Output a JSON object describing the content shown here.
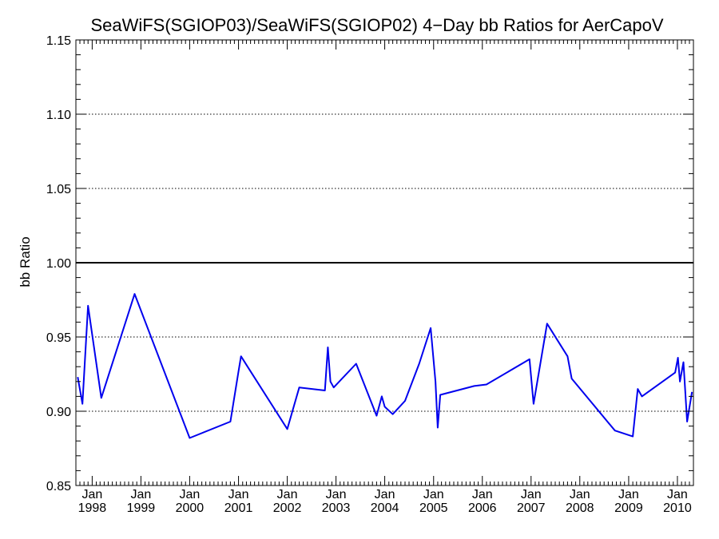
{
  "chart_data": {
    "type": "line",
    "title": "SeaWiFS(SGIOP03)/SeaWiFS(SGIOP02) 4−Day bb Ratios for AerCapoV",
    "xlabel": "",
    "ylabel": "bb Ratio",
    "xlim": [
      "1997-09-01",
      "2010-05-01"
    ],
    "ylim": [
      0.85,
      1.15
    ],
    "yticks": [
      "0.85",
      "0.90",
      "0.95",
      "1.00",
      "1.05",
      "1.10",
      "1.15"
    ],
    "xticks": [
      {
        "date": "1998-01-01",
        "month": "Jan",
        "year": "1998"
      },
      {
        "date": "1999-01-01",
        "month": "Jan",
        "year": "1999"
      },
      {
        "date": "2000-01-01",
        "month": "Jan",
        "year": "2000"
      },
      {
        "date": "2001-01-01",
        "month": "Jan",
        "year": "2001"
      },
      {
        "date": "2002-01-01",
        "month": "Jan",
        "year": "2002"
      },
      {
        "date": "2003-01-01",
        "month": "Jan",
        "year": "2003"
      },
      {
        "date": "2004-01-01",
        "month": "Jan",
        "year": "2004"
      },
      {
        "date": "2005-01-01",
        "month": "Jan",
        "year": "2005"
      },
      {
        "date": "2006-01-01",
        "month": "Jan",
        "year": "2006"
      },
      {
        "date": "2007-01-01",
        "month": "Jan",
        "year": "2007"
      },
      {
        "date": "2008-01-01",
        "month": "Jan",
        "year": "2008"
      },
      {
        "date": "2009-01-01",
        "month": "Jan",
        "year": "2009"
      },
      {
        "date": "2010-01-01",
        "month": "Jan",
        "year": "2010"
      }
    ],
    "dotted_gridlines": [
      0.9,
      0.95,
      1.05,
      1.1
    ],
    "reference_line": 1.0,
    "series": [
      {
        "color": "#0000ee",
        "x": [
          "1997-09-15",
          "1997-10-20",
          "1997-12-01",
          "1998-03-10",
          "1998-11-15",
          "2000-01-01",
          "2000-11-01",
          "2001-01-01",
          "2001-01-20",
          "2001-03-10",
          "2002-01-01",
          "2002-04-01",
          "2002-10-10",
          "2002-11-01",
          "2002-11-20",
          "2002-12-15",
          "2003-06-01",
          "2003-11-01",
          "2003-12-10",
          "2004-01-01",
          "2004-03-01",
          "2004-06-01",
          "2004-09-15",
          "2004-12-10",
          "2005-01-15",
          "2005-02-01",
          "2005-02-20",
          "2005-11-01",
          "2006-02-01",
          "2006-12-20",
          "2007-01-20",
          "2007-05-01",
          "2007-10-01",
          "2007-11-01",
          "2008-09-20",
          "2009-02-01",
          "2009-03-10",
          "2009-04-10",
          "2009-12-15",
          "2010-01-05",
          "2010-01-20",
          "2010-02-15",
          "2010-03-15",
          "2010-04-20"
        ],
        "values": [
          0.923,
          0.905,
          0.971,
          0.909,
          0.979,
          0.882,
          0.893,
          0.927,
          0.937,
          0.93,
          0.888,
          0.916,
          0.914,
          0.943,
          0.92,
          0.916,
          0.932,
          0.897,
          0.91,
          0.903,
          0.898,
          0.907,
          0.932,
          0.956,
          0.92,
          0.889,
          0.911,
          0.917,
          0.918,
          0.935,
          0.905,
          0.959,
          0.937,
          0.922,
          0.887,
          0.883,
          0.915,
          0.91,
          0.926,
          0.936,
          0.92,
          0.933,
          0.893,
          0.913
        ]
      }
    ]
  }
}
